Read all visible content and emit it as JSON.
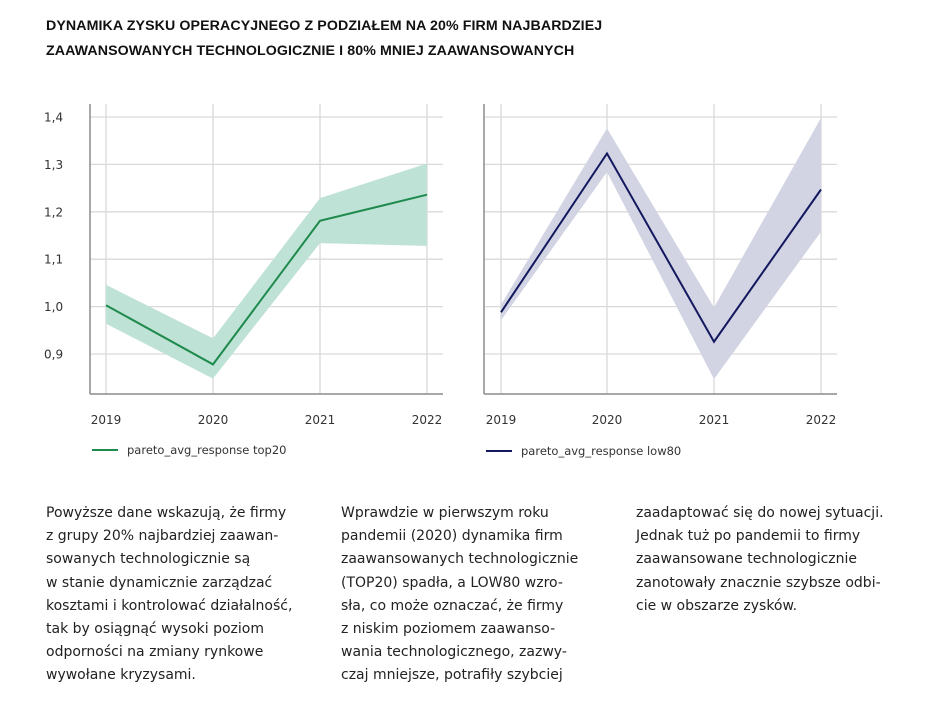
{
  "title": {
    "lines": [
      "DYNAMIKA ZYSKU OPERACYJNEGO Z PODZIAŁEM NA 20% FIRM NAJBARDZIEJ",
      "ZAAWANSOWANYCH TECHNOLOGICZNIE I 80% MNIEJ ZAAWANSOWANYCH"
    ]
  },
  "chart_data": [
    {
      "type": "line",
      "title": "",
      "xlabel": "",
      "ylabel": "",
      "categories": [
        "2019",
        "2020",
        "2021",
        "2022"
      ],
      "ylim": [
        0.82,
        1.42
      ],
      "yticks": [
        0.9,
        1.0,
        1.1,
        1.2,
        1.3,
        1.4
      ],
      "ytick_labels": [
        "0,9",
        "1,0",
        "1,1",
        "1,2",
        "1,3",
        "1,4"
      ],
      "grid": true,
      "legend_position": "bottom-left",
      "series": [
        {
          "name": "pareto_avg_response top20",
          "color": "#1e8a4c",
          "band_color": "#bfe2d6",
          "values": [
            1.003,
            0.878,
            1.181,
            1.236
          ],
          "lower": [
            0.964,
            0.848,
            1.134,
            1.128
          ],
          "upper": [
            1.046,
            0.933,
            1.229,
            1.302
          ]
        }
      ]
    },
    {
      "type": "line",
      "title": "",
      "xlabel": "",
      "ylabel": "",
      "categories": [
        "2019",
        "2020",
        "2021",
        "2022"
      ],
      "ylim": [
        0.82,
        1.42
      ],
      "yticks": [
        0.9,
        1.0,
        1.1,
        1.2,
        1.3,
        1.4
      ],
      "ytick_labels": [],
      "grid": true,
      "legend_position": "bottom-left",
      "series": [
        {
          "name": "pareto_avg_response low80",
          "color": "#14185e",
          "band_color": "#d2d4e3",
          "values": [
            0.988,
            1.323,
            0.926,
            1.247
          ],
          "lower": [
            0.971,
            1.284,
            0.847,
            1.158
          ],
          "upper": [
            1.004,
            1.376,
            0.998,
            1.398
          ]
        }
      ]
    }
  ],
  "body_text": {
    "col1": [
      "Powyższe dane wskazują, że firmy",
      "z grupy 20% najbardziej zaawan-",
      "sowanych technologicznie są",
      "w stanie dynamicznie zarządzać",
      "kosztami i kontrolować działalność,",
      "tak by osiągnąć wysoki poziom",
      "odporności na zmiany rynkowe",
      "wywołane kryzysami."
    ],
    "col2": [
      "Wprawdzie w pierwszym roku",
      "pandemii (2020) dynamika firm",
      "zaawansowanych technologicznie",
      "(TOP20) spadła, a LOW80 wzro-",
      "sła, co może oznaczać, że firmy",
      "z niskim poziomem zaawanso-",
      "wania technologicznego, zazwy-",
      "czaj mniejsze, potrafiły szybciej"
    ],
    "col3": [
      "zaadaptować się do nowej sytuacji.",
      "Jednak tuż po pandemii to firmy",
      "zaawansowane technologicznie",
      "zanotowały znacznie szybsze odbi-",
      "cie w obszarze zysków."
    ]
  }
}
